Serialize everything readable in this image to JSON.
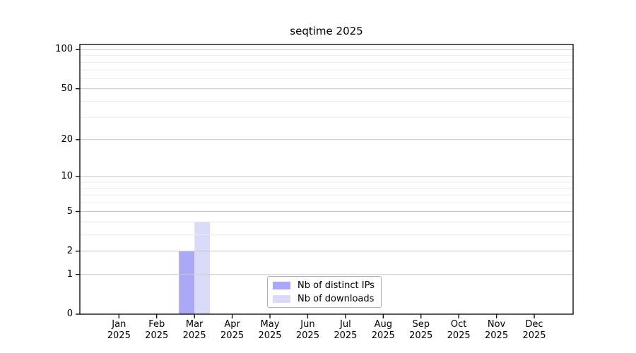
{
  "title": "seqtime 2025",
  "colors": {
    "ips_bar": "#a9a9f8",
    "downloads_bar": "#dadaf9",
    "grid_major": "#c9c9c9",
    "grid_minor": "#ececec",
    "axis": "#111111",
    "legend_border": "#b0b0b0",
    "background": "#ffffff"
  },
  "chart_data": {
    "type": "bar",
    "title": "seqtime 2025",
    "categories": [
      "Jan 2025",
      "Feb 2025",
      "Mar 2025",
      "Apr 2025",
      "May 2025",
      "Jun 2025",
      "Jul 2025",
      "Aug 2025",
      "Sep 2025",
      "Oct 2025",
      "Nov 2025",
      "Dec 2025"
    ],
    "series": [
      {
        "name": "Nb of distinct IPs",
        "color": "#a9a9f8",
        "values": [
          0,
          0,
          2,
          0,
          0,
          0,
          0,
          0,
          0,
          0,
          0,
          0
        ]
      },
      {
        "name": "Nb of downloads",
        "color": "#dadaf9",
        "values": [
          0,
          0,
          4,
          0,
          0,
          0,
          0,
          0,
          0,
          0,
          0,
          0
        ]
      }
    ],
    "xlabel": "",
    "ylabel": "",
    "y_scale": "log1p",
    "y_ticks": [
      0,
      1,
      2,
      5,
      10,
      20,
      50,
      100
    ],
    "y_minor_ticks": [
      3,
      4,
      6,
      7,
      8,
      9,
      30,
      40,
      60,
      70,
      80,
      90
    ],
    "ylim": [
      0,
      120
    ],
    "grid": "horizontal",
    "legend_position": "bottom-center"
  }
}
